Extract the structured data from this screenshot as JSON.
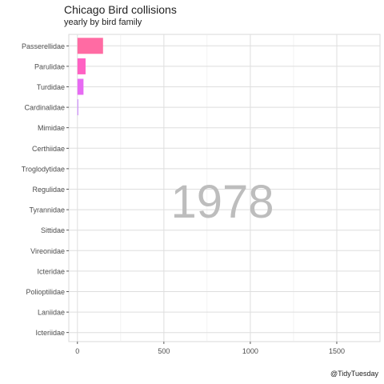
{
  "chart_data": {
    "type": "bar",
    "orientation": "horizontal",
    "title": "Chicago Bird collisions",
    "subtitle": "yearly by bird family",
    "caption": "@TidyTuesday",
    "year": "1978",
    "xlabel": "",
    "ylabel": "",
    "xlim": [
      -50,
      1750
    ],
    "xticks": [
      0,
      500,
      1000,
      1500
    ],
    "grid": true,
    "legend": "none",
    "categories": [
      "Passerellidae",
      "Parulidae",
      "Turdidae",
      "Cardinalidae",
      "Mimidae",
      "Certhiidae",
      "Troglodytidae",
      "Regulidae",
      "Tyrannidae",
      "Sittidae",
      "Vireonidae",
      "Icteridae",
      "Polioptilidae",
      "Laniidae",
      "Icteriidae"
    ],
    "values": [
      148,
      47,
      35,
      3,
      0,
      0,
      0,
      0,
      0,
      0,
      0,
      0,
      0,
      0,
      0
    ],
    "colors": [
      "#FF6BA3",
      "#FF61C3",
      "#E76BF3",
      "#C77CFF",
      "#B983FF",
      "#A58AFF",
      "#9590FF",
      "#00A9FF",
      "#00B0F6",
      "#00BCD8",
      "#00BFC4",
      "#00C1A3",
      "#00BA38",
      "#7CAE00",
      "#F8766D"
    ]
  }
}
